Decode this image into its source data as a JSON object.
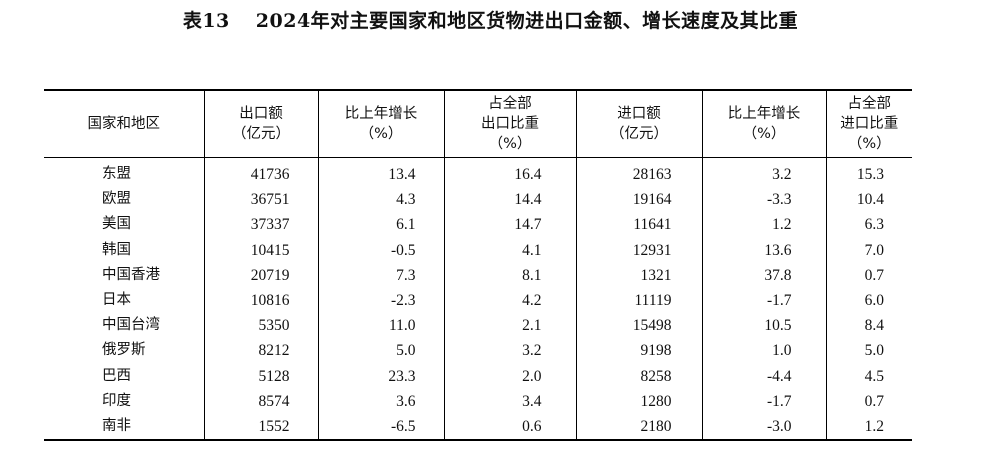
{
  "title": {
    "number": "表13",
    "text": "2024年对主要国家和地区货物进出口金额、增长速度及其比重"
  },
  "headers": [
    [
      "国家和地区"
    ],
    [
      "出口额",
      "（亿元）"
    ],
    [
      "比上年增长",
      "（%）"
    ],
    [
      "占全部",
      "出口比重",
      "（%）"
    ],
    [
      "进口额",
      "（亿元）"
    ],
    [
      "比上年增长",
      "（%）"
    ],
    [
      "占全部",
      "进口比重",
      "（%）"
    ]
  ],
  "rows": [
    [
      "东盟",
      "41736",
      "13.4",
      "16.4",
      "28163",
      "3.2",
      "15.3"
    ],
    [
      "欧盟",
      "36751",
      "4.3",
      "14.4",
      "19164",
      "-3.3",
      "10.4"
    ],
    [
      "美国",
      "37337",
      "6.1",
      "14.7",
      "11641",
      "1.2",
      "6.3"
    ],
    [
      "韩国",
      "10415",
      "-0.5",
      "4.1",
      "12931",
      "13.6",
      "7.0"
    ],
    [
      "中国香港",
      "20719",
      "7.3",
      "8.1",
      "1321",
      "37.8",
      "0.7"
    ],
    [
      "日本",
      "10816",
      "-2.3",
      "4.2",
      "11119",
      "-1.7",
      "6.0"
    ],
    [
      "中国台湾",
      "5350",
      "11.0",
      "2.1",
      "15498",
      "10.5",
      "8.4"
    ],
    [
      "俄罗斯",
      "8212",
      "5.0",
      "3.2",
      "9198",
      "1.0",
      "5.0"
    ],
    [
      "巴西",
      "5128",
      "23.3",
      "2.0",
      "8258",
      "-4.4",
      "4.5"
    ],
    [
      "印度",
      "8574",
      "3.6",
      "3.4",
      "1280",
      "-1.7",
      "0.7"
    ],
    [
      "南非",
      "1552",
      "-6.5",
      "0.6",
      "2180",
      "-3.0",
      "1.2"
    ]
  ]
}
